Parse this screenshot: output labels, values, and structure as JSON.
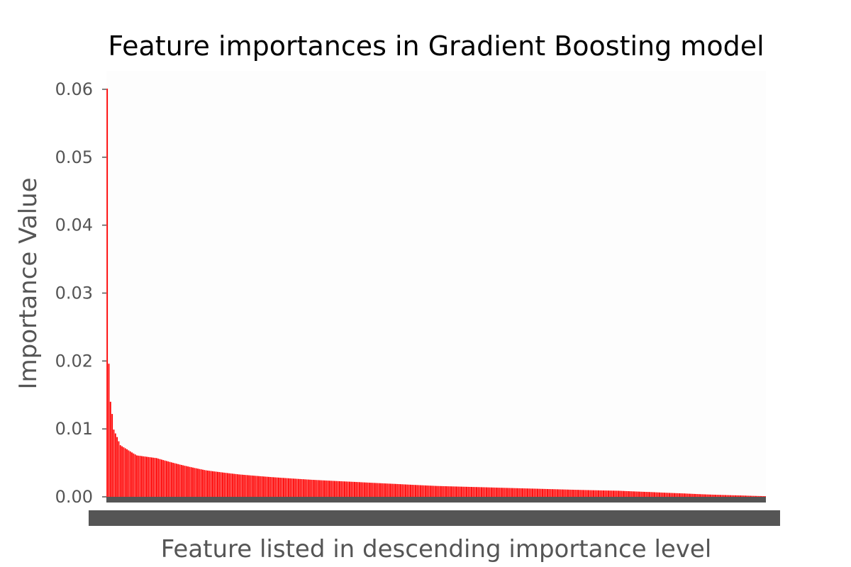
{
  "chart_data": {
    "type": "bar",
    "title": "Feature importances in Gradient Boosting model",
    "xlabel": "Feature listed in descending importance level",
    "ylabel": "Importance Value",
    "ylim": [
      0,
      0.06
    ],
    "yticks": [
      "0.00",
      "0.01",
      "0.02",
      "0.03",
      "0.04",
      "0.05",
      "0.06"
    ],
    "grid": false,
    "legend": "none",
    "bar_color": "#ff0000",
    "tick_color": "#555555",
    "plot_background": "#fdfdfd",
    "n_features": 400,
    "profile": [
      [
        0,
        0.0601
      ],
      [
        1,
        0.0196
      ],
      [
        2,
        0.014
      ],
      [
        3,
        0.0122
      ],
      [
        4,
        0.0099
      ],
      [
        6,
        0.0088
      ],
      [
        8,
        0.0076
      ],
      [
        12,
        0.007
      ],
      [
        18,
        0.0061
      ],
      [
        30,
        0.0057
      ],
      [
        45,
        0.0047
      ],
      [
        60,
        0.0039
      ],
      [
        80,
        0.0033
      ],
      [
        100,
        0.0029
      ],
      [
        125,
        0.0025
      ],
      [
        150,
        0.0022
      ],
      [
        175,
        0.0019
      ],
      [
        200,
        0.0016
      ],
      [
        230,
        0.0014
      ],
      [
        260,
        0.0012
      ],
      [
        290,
        0.001
      ],
      [
        310,
        0.0009
      ],
      [
        330,
        0.0007
      ],
      [
        350,
        0.0005
      ],
      [
        370,
        0.0003
      ],
      [
        385,
        0.0002
      ],
      [
        399,
        0.0001
      ]
    ]
  }
}
